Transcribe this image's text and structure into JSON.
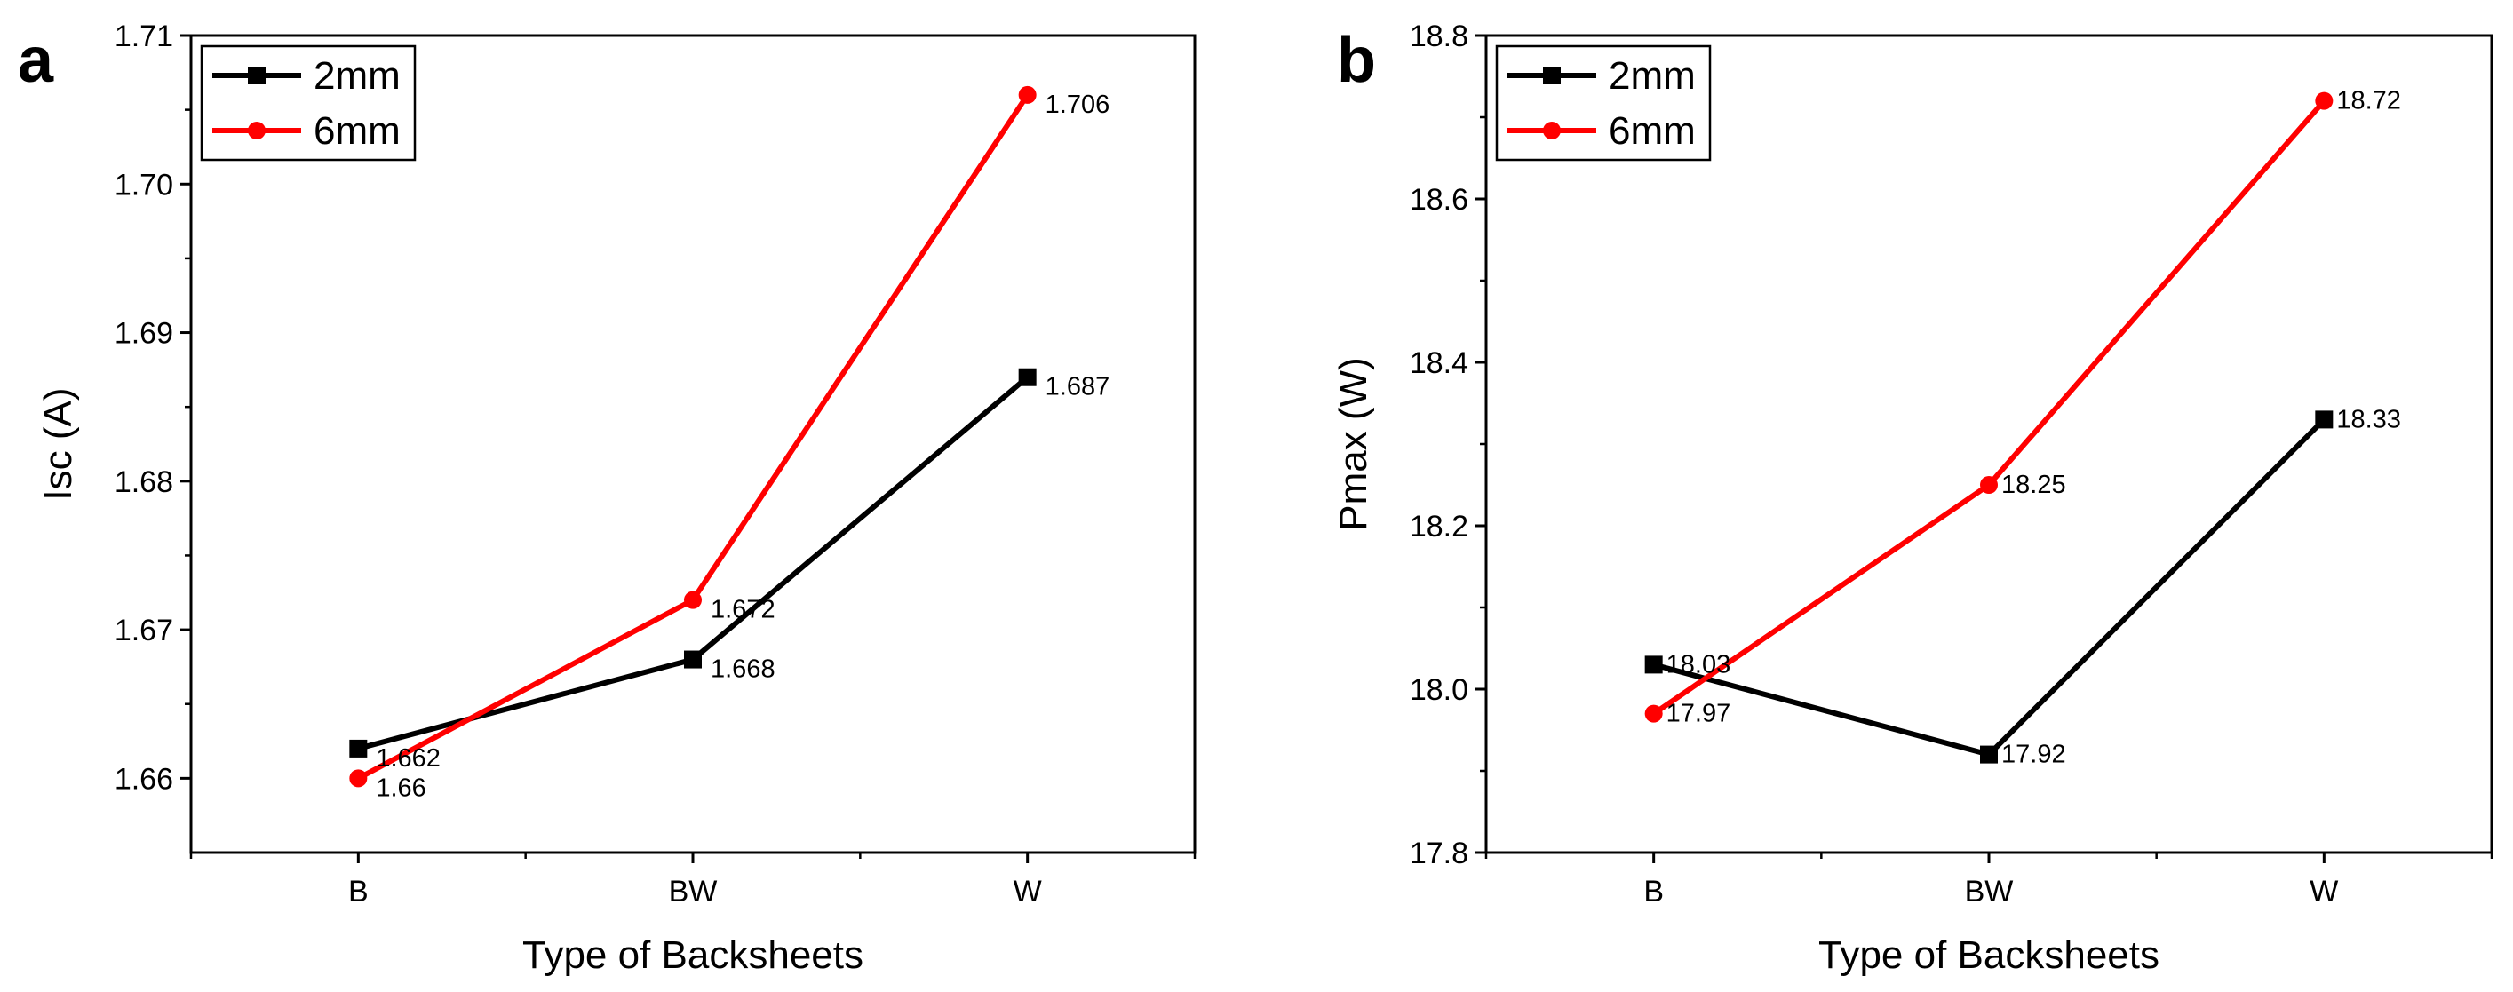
{
  "chart_data": [
    {
      "type": "line",
      "panel": "a",
      "xlabel": "Type of Backsheets",
      "ylabel": "Isc (A)",
      "categories": [
        "B",
        "BW",
        "W"
      ],
      "ylim": [
        1.655,
        1.71
      ],
      "yticks": [
        1.66,
        1.67,
        1.68,
        1.69,
        1.7,
        1.71
      ],
      "ytick_labels": [
        "1.66",
        "1.67",
        "1.68",
        "1.69",
        "1.70",
        "1.71"
      ],
      "legend_position": "top-left",
      "series": [
        {
          "name": "2mm",
          "color": "#000000",
          "marker": "square",
          "values": [
            1.662,
            1.668,
            1.687
          ],
          "labels": [
            "1.662",
            "1.668",
            "1.687"
          ]
        },
        {
          "name": "6mm",
          "color": "#ff0000",
          "marker": "circle",
          "values": [
            1.66,
            1.672,
            1.706
          ],
          "labels": [
            "1.66",
            "1.672",
            "1.706"
          ]
        }
      ]
    },
    {
      "type": "line",
      "panel": "b",
      "xlabel": "Type of Backsheets",
      "ylabel": "Pmax (W)",
      "categories": [
        "B",
        "BW",
        "W"
      ],
      "ylim": [
        17.8,
        18.8
      ],
      "yticks": [
        17.8,
        18.0,
        18.2,
        18.4,
        18.6,
        18.8
      ],
      "ytick_labels": [
        "17.8",
        "18.0",
        "18.2",
        "18.4",
        "18.6",
        "18.8"
      ],
      "legend_position": "top-left",
      "series": [
        {
          "name": "2mm",
          "color": "#000000",
          "marker": "square",
          "values": [
            18.03,
            17.92,
            18.33
          ],
          "labels": [
            "18.03",
            "17.92",
            "18.33"
          ]
        },
        {
          "name": "6mm",
          "color": "#ff0000",
          "marker": "circle",
          "values": [
            17.97,
            18.25,
            18.72
          ],
          "labels": [
            "17.97",
            "18.25",
            "18.72"
          ]
        }
      ]
    }
  ]
}
